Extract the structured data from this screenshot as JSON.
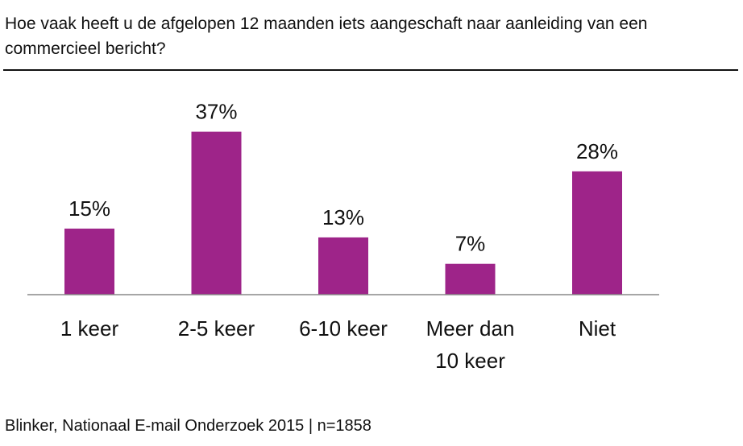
{
  "title": "Hoe vaak heeft u de afgelopen 12 maanden iets aangeschaft naar aanleiding van een commercieel bericht?",
  "source": "Blinker, Nationaal E-mail Onderzoek 2015 | n=1858",
  "chart_data": {
    "type": "bar",
    "title": "Hoe vaak heeft u de afgelopen 12 maanden iets aangeschaft naar aanleiding van een commercieel bericht?",
    "categories": [
      [
        "1 keer"
      ],
      [
        "2-5 keer"
      ],
      [
        "6-10 keer"
      ],
      [
        "Meer dan",
        "10 keer"
      ],
      [
        "Niet"
      ]
    ],
    "values": [
      15,
      37,
      13,
      7,
      28
    ],
    "value_labels": [
      "15%",
      "37%",
      "13%",
      "7%",
      "28%"
    ],
    "ylim": [
      0,
      40
    ],
    "grid": false,
    "bar_color": "#9e2489",
    "axis_color": "#888888"
  }
}
